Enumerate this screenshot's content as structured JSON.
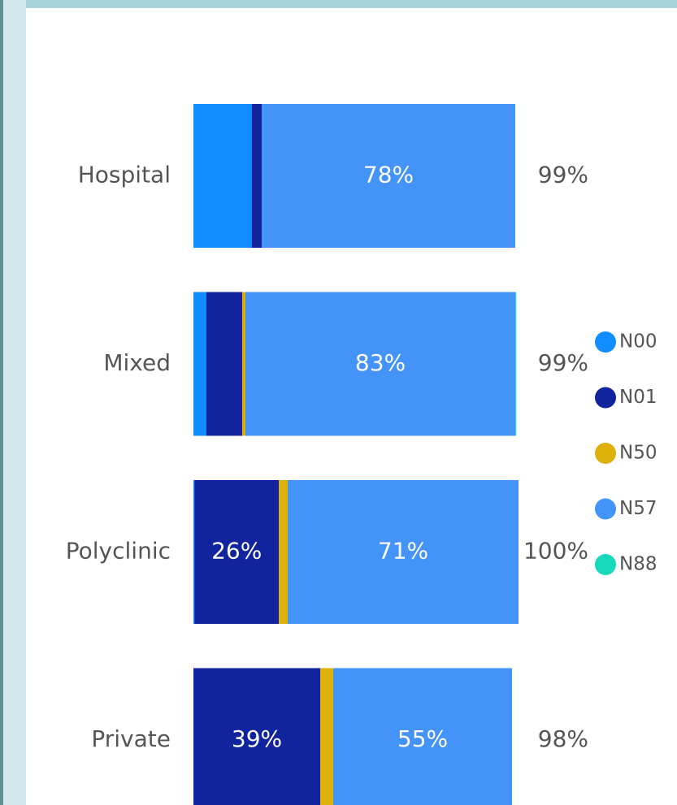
{
  "chart_data": {
    "type": "stacked-bar-horizontal",
    "categories": [
      "Hospital",
      "Mixed",
      "Polyclinic",
      "Private"
    ],
    "series": [
      {
        "name": "N00",
        "color": "#118DFF",
        "values": [
          18,
          4,
          0.3,
          0
        ],
        "value_labels": [
          null,
          null,
          null,
          null
        ]
      },
      {
        "name": "N01",
        "color": "#12239E",
        "values": [
          3,
          11,
          26,
          39
        ],
        "value_labels": [
          null,
          null,
          "26%",
          "39%"
        ]
      },
      {
        "name": "N50",
        "color": "#DDB10A",
        "values": [
          0,
          1,
          2.7,
          4
        ],
        "value_labels": [
          null,
          null,
          null,
          null
        ]
      },
      {
        "name": "N57",
        "color": "#4493F9",
        "values": [
          78,
          83,
          71,
          55
        ],
        "value_labels": [
          "78%",
          "83%",
          "71%",
          "55%"
        ]
      },
      {
        "name": "N88",
        "color": "#1AD8BC",
        "values": [
          0,
          0.3,
          0,
          0
        ],
        "value_labels": [
          null,
          null,
          null,
          null
        ]
      }
    ],
    "totals": [
      99,
      99,
      100,
      98
    ],
    "total_labels": [
      "99%",
      "99%",
      "100%",
      "98%"
    ],
    "xlim": [
      0,
      100
    ],
    "legend": "right"
  }
}
